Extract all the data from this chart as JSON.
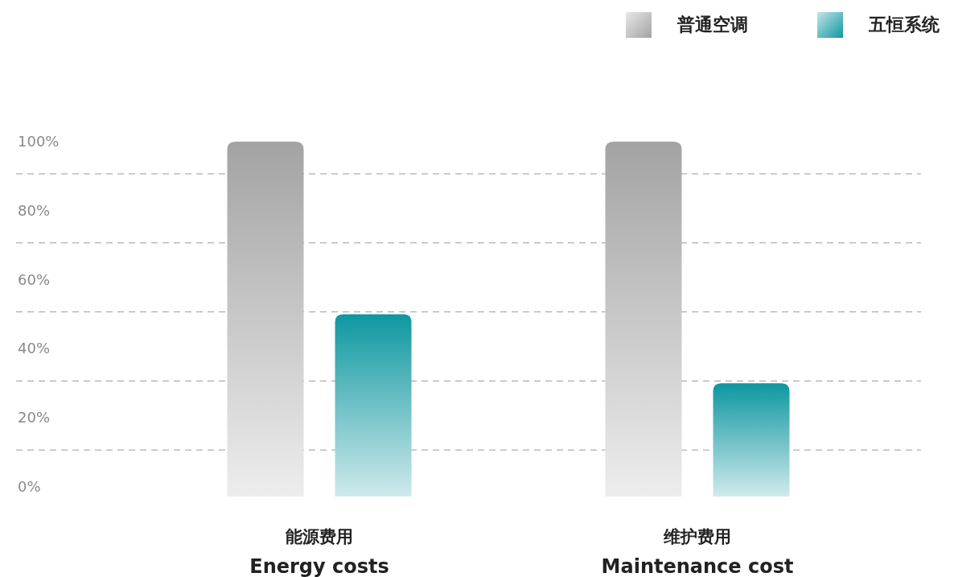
{
  "chart_data": {
    "type": "bar",
    "categories": [
      "能源费用\nEnergy costs",
      "维护费用\nMaintenance cost"
    ],
    "series": [
      {
        "name": "普通空调",
        "color": "#a3a3a3",
        "values": [
          100,
          100
        ]
      },
      {
        "name": "五恒系统",
        "color": "#0e97a0",
        "values": [
          50,
          30
        ]
      }
    ],
    "ylim": [
      0,
      100
    ],
    "yticks": [
      {
        "value": 0,
        "label": "0%"
      },
      {
        "value": 20,
        "label": "20%"
      },
      {
        "value": 40,
        "label": "40%"
      },
      {
        "value": 60,
        "label": "60%"
      },
      {
        "value": 80,
        "label": "80%"
      },
      {
        "value": 100,
        "label": "100%"
      }
    ],
    "grid": "y",
    "legend": "top right"
  }
}
